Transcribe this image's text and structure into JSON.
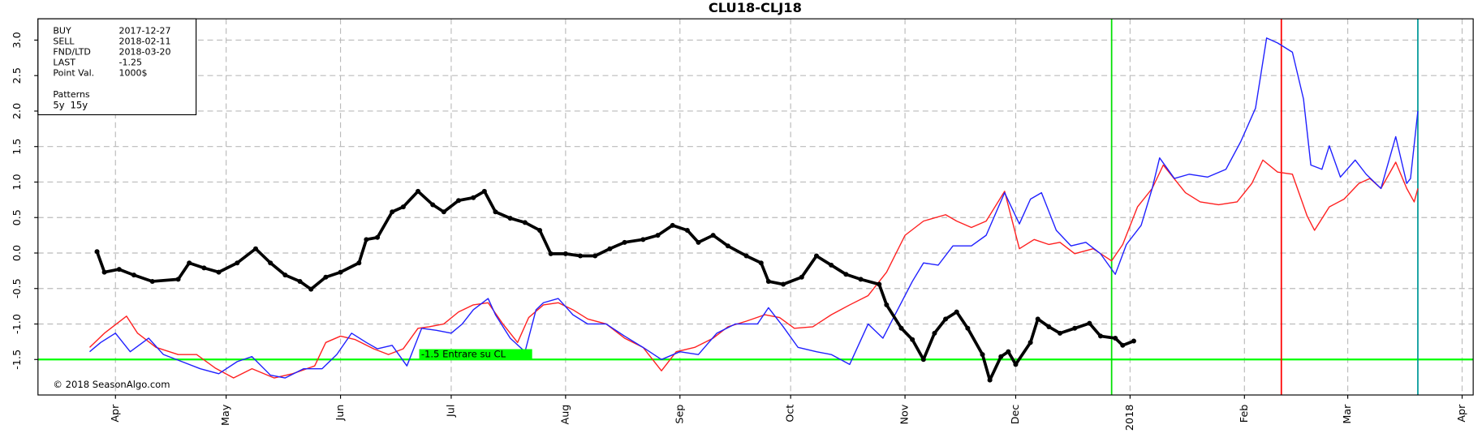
{
  "chart_data": {
    "type": "line",
    "title": "CLU18-CLJ18",
    "xlim": [
      -21,
      368
    ],
    "xticks": [
      {
        "value": 0,
        "label": "Apr"
      },
      {
        "value": 30,
        "label": "May"
      },
      {
        "value": 61,
        "label": "Jun"
      },
      {
        "value": 91,
        "label": "Jul"
      },
      {
        "value": 122,
        "label": "Aug"
      },
      {
        "value": 153,
        "label": "Sep"
      },
      {
        "value": 183,
        "label": "Oct"
      },
      {
        "value": 214,
        "label": "Nov"
      },
      {
        "value": 244,
        "label": "Dec"
      },
      {
        "value": 275,
        "label": "2018"
      },
      {
        "value": 306,
        "label": "Feb"
      },
      {
        "value": 334,
        "label": "Mar"
      },
      {
        "value": 365,
        "label": "Apr"
      }
    ],
    "ylim": [
      -2,
      3.3
    ],
    "yticks": [
      -1.5,
      {
        "value": -1,
        "label": "-1.0"
      },
      -0.5,
      {
        "value": 0,
        "label": "0.0"
      },
      0.5,
      {
        "value": 1,
        "label": "1.0"
      },
      1.5,
      {
        "value": 2,
        "label": "2.0"
      },
      2.5,
      {
        "value": 3,
        "label": "3.0"
      }
    ],
    "grid": true,
    "info": [
      {
        "label": "BUY",
        "value": "2017-12-27",
        "color": "#00e000",
        "x": 270
      },
      {
        "label": "SELL",
        "value": "2018-02-11",
        "color": "#ff0000",
        "x": 316
      },
      {
        "label": "FND/LTD",
        "value": "2018-03-20",
        "color": "#009999",
        "x": 353
      },
      {
        "label": "LAST",
        "value": "-1.25"
      },
      {
        "label": "Point Val.",
        "value": "1000$"
      }
    ],
    "patterns_title": "Patterns",
    "hline": {
      "value": -1.5,
      "label": "-1.5  Entrare su CL",
      "color": "#00ff00"
    },
    "copyright": "© 2018 SeasonAlgo.com",
    "series": [
      {
        "name": "5y",
        "color": "#ff2020",
        "width": 1.2,
        "x": [
          -7,
          -3,
          3,
          6,
          11,
          17,
          22,
          27,
          32,
          37,
          43,
          48,
          54,
          57,
          61,
          65,
          70,
          74,
          78,
          82,
          85,
          89,
          93,
          97,
          101,
          105,
          109,
          112,
          116,
          120,
          124,
          128,
          133,
          138,
          143,
          148,
          152,
          157,
          162,
          166,
          171,
          176,
          180,
          184,
          189,
          194,
          199,
          204,
          209,
          214,
          219,
          225,
          228,
          232,
          236,
          241,
          245,
          249,
          253,
          256,
          260,
          265,
          270,
          273,
          277,
          281,
          284,
          290,
          294,
          299,
          304,
          308,
          311,
          315,
          319,
          323,
          325,
          329,
          333,
          337,
          340,
          343,
          347,
          350,
          352,
          353
        ],
        "values": [
          -1.33,
          -1.13,
          -0.89,
          -1.13,
          -1.33,
          -1.43,
          -1.43,
          -1.62,
          -1.76,
          -1.63,
          -1.76,
          -1.7,
          -1.59,
          -1.26,
          -1.17,
          -1.22,
          -1.35,
          -1.43,
          -1.35,
          -1.06,
          -1.04,
          -1,
          -0.83,
          -0.73,
          -0.7,
          -1,
          -1.26,
          -0.91,
          -0.73,
          -0.7,
          -0.8,
          -0.93,
          -1,
          -1.2,
          -1.33,
          -1.66,
          -1.39,
          -1.33,
          -1.2,
          -1.04,
          -0.96,
          -0.87,
          -0.91,
          -1.06,
          -1.04,
          -0.87,
          -0.73,
          -0.6,
          -0.27,
          0.25,
          0.45,
          0.54,
          0.45,
          0.36,
          0.45,
          0.87,
          0.06,
          0.19,
          0.12,
          0.15,
          -0.01,
          0.06,
          -0.11,
          0.12,
          0.65,
          0.91,
          1.24,
          0.85,
          0.72,
          0.68,
          0.72,
          0.98,
          1.31,
          1.14,
          1.11,
          0.52,
          0.32,
          0.65,
          0.76,
          0.98,
          1.05,
          0.91,
          1.28,
          0.91,
          0.72,
          0.91
        ]
      },
      {
        "name": "15y",
        "color": "#2020ff",
        "width": 1.2,
        "x": [
          -7,
          -4,
          0,
          4,
          9,
          13,
          18,
          23,
          28,
          33,
          37,
          42,
          46,
          51,
          56,
          60,
          64,
          68,
          71,
          75,
          79,
          83,
          87,
          91,
          94,
          97,
          101,
          103,
          107,
          111,
          114,
          116,
          120,
          124,
          128,
          133,
          138,
          143,
          148,
          153,
          158,
          163,
          168,
          174,
          177,
          181,
          185,
          190,
          194,
          199,
          204,
          208,
          212,
          216,
          219,
          223,
          227,
          232,
          236,
          241,
          245,
          248,
          251,
          255,
          259,
          263,
          267,
          271,
          274,
          278,
          281,
          283,
          287,
          291,
          296,
          301,
          305,
          309,
          312,
          315,
          319,
          322,
          324,
          327,
          329,
          332,
          336,
          339,
          343,
          347,
          350,
          351,
          353
        ],
        "values": [
          -1.39,
          -1.26,
          -1.13,
          -1.39,
          -1.2,
          -1.43,
          -1.53,
          -1.63,
          -1.7,
          -1.53,
          -1.46,
          -1.72,
          -1.76,
          -1.63,
          -1.63,
          -1.43,
          -1.13,
          -1.26,
          -1.35,
          -1.3,
          -1.59,
          -1.06,
          -1.09,
          -1.13,
          -1,
          -0.8,
          -0.64,
          -0.87,
          -1.2,
          -1.39,
          -0.8,
          -0.7,
          -0.64,
          -0.87,
          -1,
          -1,
          -1.17,
          -1.33,
          -1.5,
          -1.39,
          -1.43,
          -1.13,
          -1,
          -1,
          -0.77,
          -1.04,
          -1.33,
          -1.39,
          -1.43,
          -1.57,
          -1,
          -1.2,
          -0.8,
          -0.4,
          -0.14,
          -0.17,
          0.1,
          0.1,
          0.25,
          0.85,
          0.41,
          0.76,
          0.85,
          0.32,
          0.1,
          0.15,
          -0.01,
          -0.3,
          0.12,
          0.39,
          0.91,
          1.34,
          1.05,
          1.11,
          1.07,
          1.18,
          1.57,
          2.04,
          3.03,
          2.96,
          2.83,
          2.17,
          1.24,
          1.18,
          1.51,
          1.07,
          1.31,
          1.11,
          0.91,
          1.64,
          0.98,
          1.05,
          2
        ]
      },
      {
        "color": "#000000",
        "width": 3.2,
        "markers": true,
        "x": [
          -5,
          -3,
          1,
          5,
          10,
          17,
          20,
          24,
          28,
          33,
          38,
          42,
          46,
          50,
          53,
          57,
          61,
          66,
          68,
          71,
          75,
          78,
          82,
          86,
          89,
          93,
          97,
          100,
          103,
          107,
          111,
          115,
          118,
          122,
          126,
          130,
          134,
          138,
          143,
          147,
          151,
          155,
          158,
          162,
          166,
          171,
          175,
          177,
          181,
          186,
          190,
          194,
          198,
          202,
          207,
          209,
          213,
          216,
          219,
          222,
          225,
          228,
          231,
          235,
          237,
          240,
          242,
          244,
          248,
          250,
          253,
          256,
          260,
          264,
          267,
          271,
          273,
          276
        ],
        "values": [
          0.02,
          -0.27,
          -0.23,
          -0.31,
          -0.4,
          -0.37,
          -0.14,
          -0.21,
          -0.27,
          -0.14,
          0.06,
          -0.14,
          -0.31,
          -0.4,
          -0.51,
          -0.34,
          -0.27,
          -0.14,
          0.19,
          0.22,
          0.58,
          0.65,
          0.87,
          0.68,
          0.58,
          0.74,
          0.78,
          0.87,
          0.58,
          0.49,
          0.43,
          0.32,
          -0.01,
          -0.01,
          -0.04,
          -0.04,
          0.06,
          0.15,
          0.19,
          0.25,
          0.39,
          0.32,
          0.15,
          0.25,
          0.1,
          -0.04,
          -0.14,
          -0.4,
          -0.44,
          -0.34,
          -0.04,
          -0.17,
          -0.3,
          -0.37,
          -0.44,
          -0.73,
          -1.06,
          -1.22,
          -1.5,
          -1.13,
          -0.93,
          -0.83,
          -1.06,
          -1.43,
          -1.79,
          -1.46,
          -1.39,
          -1.57,
          -1.26,
          -0.93,
          -1.04,
          -1.13,
          -1.06,
          -0.99,
          -1.17,
          -1.2,
          -1.3,
          -1.24
        ]
      }
    ]
  }
}
